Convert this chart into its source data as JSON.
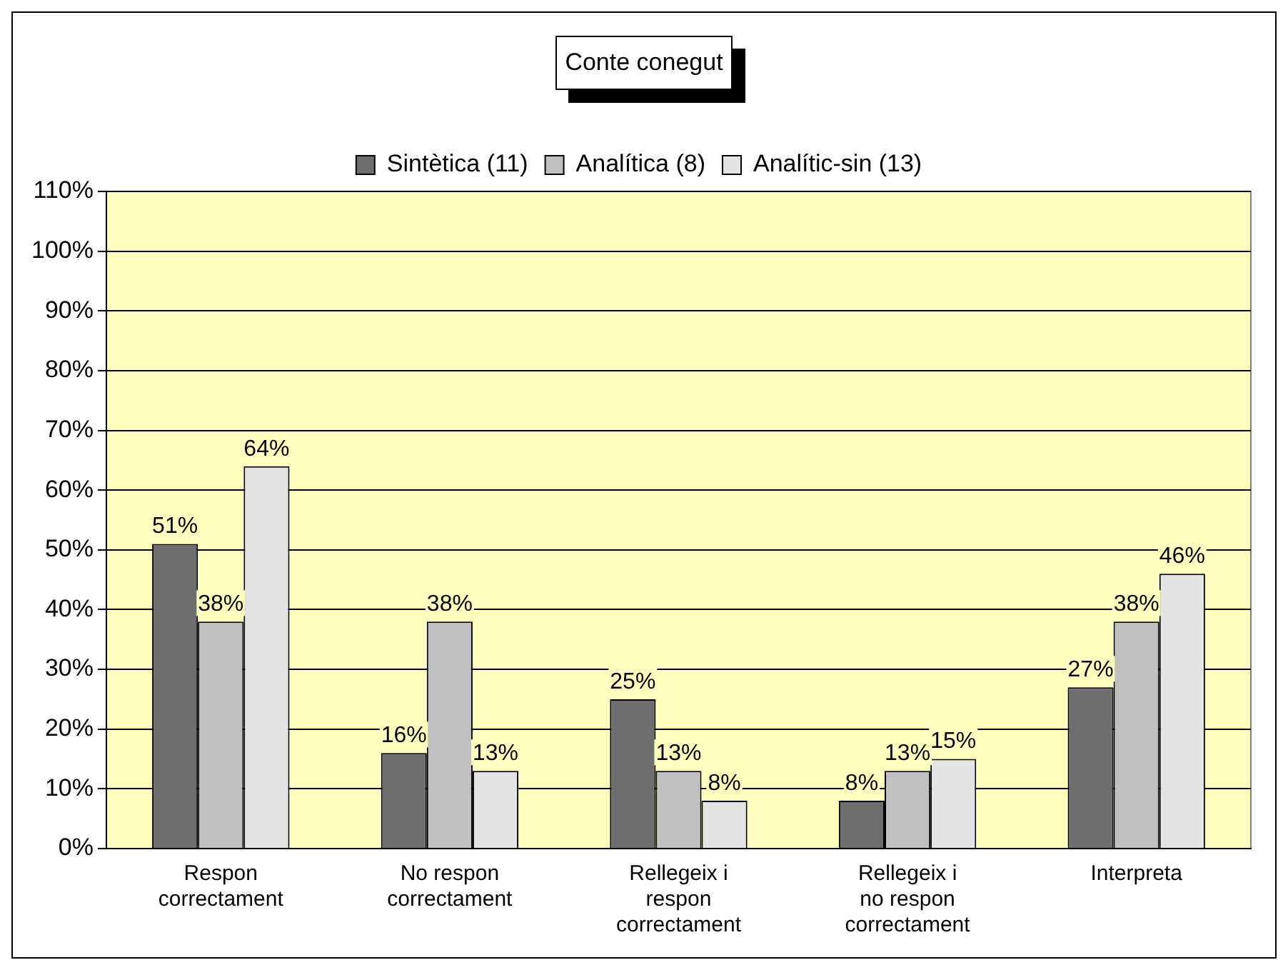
{
  "chart_data": {
    "type": "bar",
    "title": "Conte conegut",
    "categories": [
      "Respon correctament",
      "No respon correctament",
      "Rellegeix i respon correctament",
      "Rellegeix i no respon correctament",
      "Interpreta"
    ],
    "series": [
      {
        "name": "Sintètica (11)",
        "color": "#6e6e6e",
        "values": [
          51,
          16,
          25,
          8,
          27
        ],
        "value_labels": [
          "51%",
          "16%",
          "25%",
          "8%",
          "27%"
        ]
      },
      {
        "name": "Analítica (8)",
        "color": "#c0c0c0",
        "values": [
          38,
          38,
          13,
          13,
          38
        ],
        "value_labels": [
          "38%",
          "38%",
          "13%",
          "13%",
          "38%"
        ]
      },
      {
        "name": "Analític-sin (13)",
        "color": "#e4e4e4",
        "values": [
          64,
          13,
          8,
          15,
          46
        ],
        "value_labels": [
          "64%",
          "13%",
          "8%",
          "15%",
          "46%"
        ]
      }
    ],
    "ylim": [
      0,
      110
    ],
    "yticks": [
      {
        "value": 0,
        "label": "0%"
      },
      {
        "value": 10,
        "label": "10%"
      },
      {
        "value": 20,
        "label": "20%"
      },
      {
        "value": 30,
        "label": "30%"
      },
      {
        "value": 40,
        "label": "40%"
      },
      {
        "value": 50,
        "label": "50%"
      },
      {
        "value": 60,
        "label": "60%"
      },
      {
        "value": 70,
        "label": "70%"
      },
      {
        "value": 80,
        "label": "80%"
      },
      {
        "value": 90,
        "label": "90%"
      },
      {
        "value": 100,
        "label": "100%"
      },
      {
        "value": 110,
        "label": "110%"
      }
    ],
    "grid": "y",
    "legend": "top"
  }
}
